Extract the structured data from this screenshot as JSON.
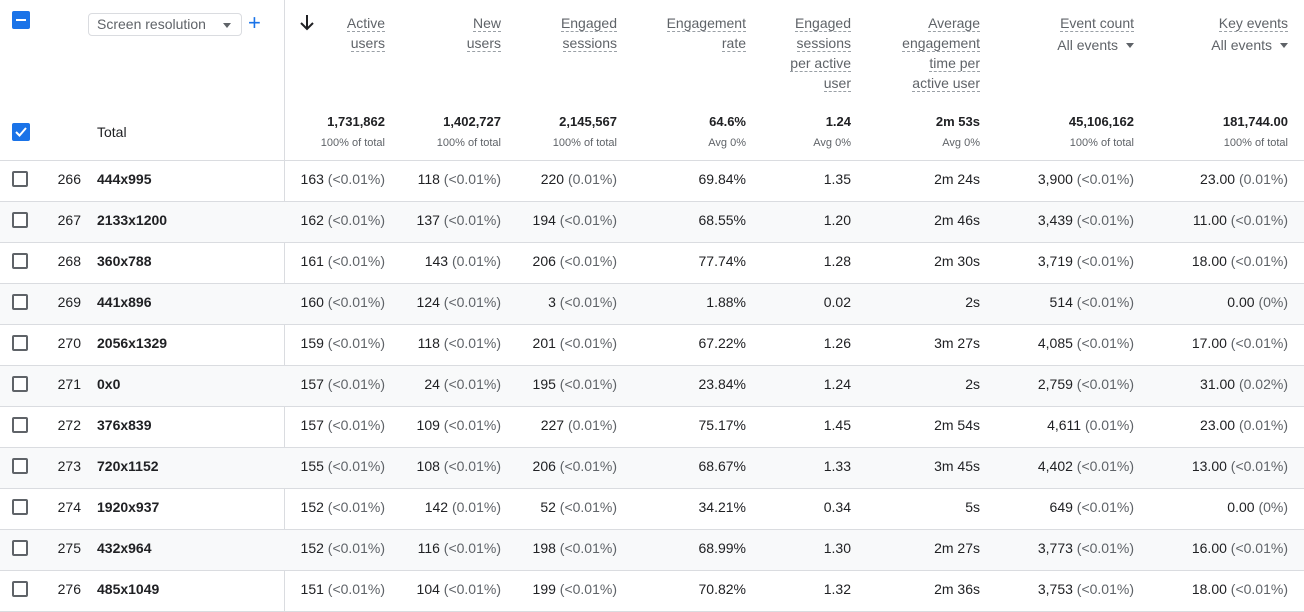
{
  "dimension": {
    "label": "Screen resolution"
  },
  "columns": [
    {
      "key": "active_users",
      "label_lines": [
        "Active",
        "users"
      ]
    },
    {
      "key": "new_users",
      "label_lines": [
        "New",
        "users"
      ]
    },
    {
      "key": "engaged_sessions",
      "label_lines": [
        "Engaged",
        "sessions"
      ]
    },
    {
      "key": "engagement_rate",
      "label_lines": [
        "Engagement",
        "rate"
      ]
    },
    {
      "key": "engaged_per_user",
      "label_lines": [
        "Engaged",
        "sessions",
        "per active",
        "user"
      ]
    },
    {
      "key": "avg_time",
      "label_lines": [
        "Average",
        "engagement",
        "time per",
        "active user"
      ]
    },
    {
      "key": "event_count",
      "label_lines": [
        "Event count"
      ],
      "filter": "All events"
    },
    {
      "key": "key_events",
      "label_lines": [
        "Key events"
      ],
      "filter": "All events"
    }
  ],
  "total": {
    "label": "Total",
    "values": [
      "1,731,862",
      "1,402,727",
      "2,145,567",
      "64.6%",
      "1.24",
      "2m 53s",
      "45,106,162",
      "181,744.00"
    ],
    "subs": [
      "100% of total",
      "100% of total",
      "100% of total",
      "Avg 0%",
      "Avg 0%",
      "Avg 0%",
      "100% of total",
      "100% of total"
    ]
  },
  "rows": [
    {
      "idx": "266",
      "dim": "444x995",
      "cells": [
        [
          "163",
          "(<0.01%)"
        ],
        [
          "118",
          "(<0.01%)"
        ],
        [
          "220",
          "(0.01%)"
        ],
        [
          "69.84%",
          ""
        ],
        [
          "1.35",
          ""
        ],
        [
          "2m 24s",
          ""
        ],
        [
          "3,900",
          "(<0.01%)"
        ],
        [
          "23.00",
          "(0.01%)"
        ]
      ]
    },
    {
      "idx": "267",
      "dim": "2133x1200",
      "cells": [
        [
          "162",
          "(<0.01%)"
        ],
        [
          "137",
          "(<0.01%)"
        ],
        [
          "194",
          "(<0.01%)"
        ],
        [
          "68.55%",
          ""
        ],
        [
          "1.20",
          ""
        ],
        [
          "2m 46s",
          ""
        ],
        [
          "3,439",
          "(<0.01%)"
        ],
        [
          "11.00",
          "(<0.01%)"
        ]
      ]
    },
    {
      "idx": "268",
      "dim": "360x788",
      "cells": [
        [
          "161",
          "(<0.01%)"
        ],
        [
          "143",
          "(0.01%)"
        ],
        [
          "206",
          "(<0.01%)"
        ],
        [
          "77.74%",
          ""
        ],
        [
          "1.28",
          ""
        ],
        [
          "2m 30s",
          ""
        ],
        [
          "3,719",
          "(<0.01%)"
        ],
        [
          "18.00",
          "(<0.01%)"
        ]
      ]
    },
    {
      "idx": "269",
      "dim": "441x896",
      "cells": [
        [
          "160",
          "(<0.01%)"
        ],
        [
          "124",
          "(<0.01%)"
        ],
        [
          "3",
          "(<0.01%)"
        ],
        [
          "1.88%",
          ""
        ],
        [
          "0.02",
          ""
        ],
        [
          "2s",
          ""
        ],
        [
          "514",
          "(<0.01%)"
        ],
        [
          "0.00",
          "(0%)"
        ]
      ]
    },
    {
      "idx": "270",
      "dim": "2056x1329",
      "cells": [
        [
          "159",
          "(<0.01%)"
        ],
        [
          "118",
          "(<0.01%)"
        ],
        [
          "201",
          "(<0.01%)"
        ],
        [
          "67.22%",
          ""
        ],
        [
          "1.26",
          ""
        ],
        [
          "3m 27s",
          ""
        ],
        [
          "4,085",
          "(<0.01%)"
        ],
        [
          "17.00",
          "(<0.01%)"
        ]
      ]
    },
    {
      "idx": "271",
      "dim": "0x0",
      "cells": [
        [
          "157",
          "(<0.01%)"
        ],
        [
          "24",
          "(<0.01%)"
        ],
        [
          "195",
          "(<0.01%)"
        ],
        [
          "23.84%",
          ""
        ],
        [
          "1.24",
          ""
        ],
        [
          "2s",
          ""
        ],
        [
          "2,759",
          "(<0.01%)"
        ],
        [
          "31.00",
          "(0.02%)"
        ]
      ]
    },
    {
      "idx": "272",
      "dim": "376x839",
      "cells": [
        [
          "157",
          "(<0.01%)"
        ],
        [
          "109",
          "(<0.01%)"
        ],
        [
          "227",
          "(0.01%)"
        ],
        [
          "75.17%",
          ""
        ],
        [
          "1.45",
          ""
        ],
        [
          "2m 54s",
          ""
        ],
        [
          "4,611",
          "(0.01%)"
        ],
        [
          "23.00",
          "(0.01%)"
        ]
      ]
    },
    {
      "idx": "273",
      "dim": "720x1152",
      "cells": [
        [
          "155",
          "(<0.01%)"
        ],
        [
          "108",
          "(<0.01%)"
        ],
        [
          "206",
          "(<0.01%)"
        ],
        [
          "68.67%",
          ""
        ],
        [
          "1.33",
          ""
        ],
        [
          "3m 45s",
          ""
        ],
        [
          "4,402",
          "(<0.01%)"
        ],
        [
          "13.00",
          "(<0.01%)"
        ]
      ]
    },
    {
      "idx": "274",
      "dim": "1920x937",
      "cells": [
        [
          "152",
          "(<0.01%)"
        ],
        [
          "142",
          "(0.01%)"
        ],
        [
          "52",
          "(<0.01%)"
        ],
        [
          "34.21%",
          ""
        ],
        [
          "0.34",
          ""
        ],
        [
          "5s",
          ""
        ],
        [
          "649",
          "(<0.01%)"
        ],
        [
          "0.00",
          "(0%)"
        ]
      ]
    },
    {
      "idx": "275",
      "dim": "432x964",
      "cells": [
        [
          "152",
          "(<0.01%)"
        ],
        [
          "116",
          "(<0.01%)"
        ],
        [
          "198",
          "(<0.01%)"
        ],
        [
          "68.99%",
          ""
        ],
        [
          "1.30",
          ""
        ],
        [
          "2m 27s",
          ""
        ],
        [
          "3,773",
          "(<0.01%)"
        ],
        [
          "16.00",
          "(<0.01%)"
        ]
      ]
    },
    {
      "idx": "276",
      "dim": "485x1049",
      "cells": [
        [
          "151",
          "(<0.01%)"
        ],
        [
          "104",
          "(<0.01%)"
        ],
        [
          "199",
          "(<0.01%)"
        ],
        [
          "70.82%",
          ""
        ],
        [
          "1.32",
          ""
        ],
        [
          "2m 36s",
          ""
        ],
        [
          "3,753",
          "(<0.01%)"
        ],
        [
          "18.00",
          "(<0.01%)"
        ]
      ]
    }
  ]
}
